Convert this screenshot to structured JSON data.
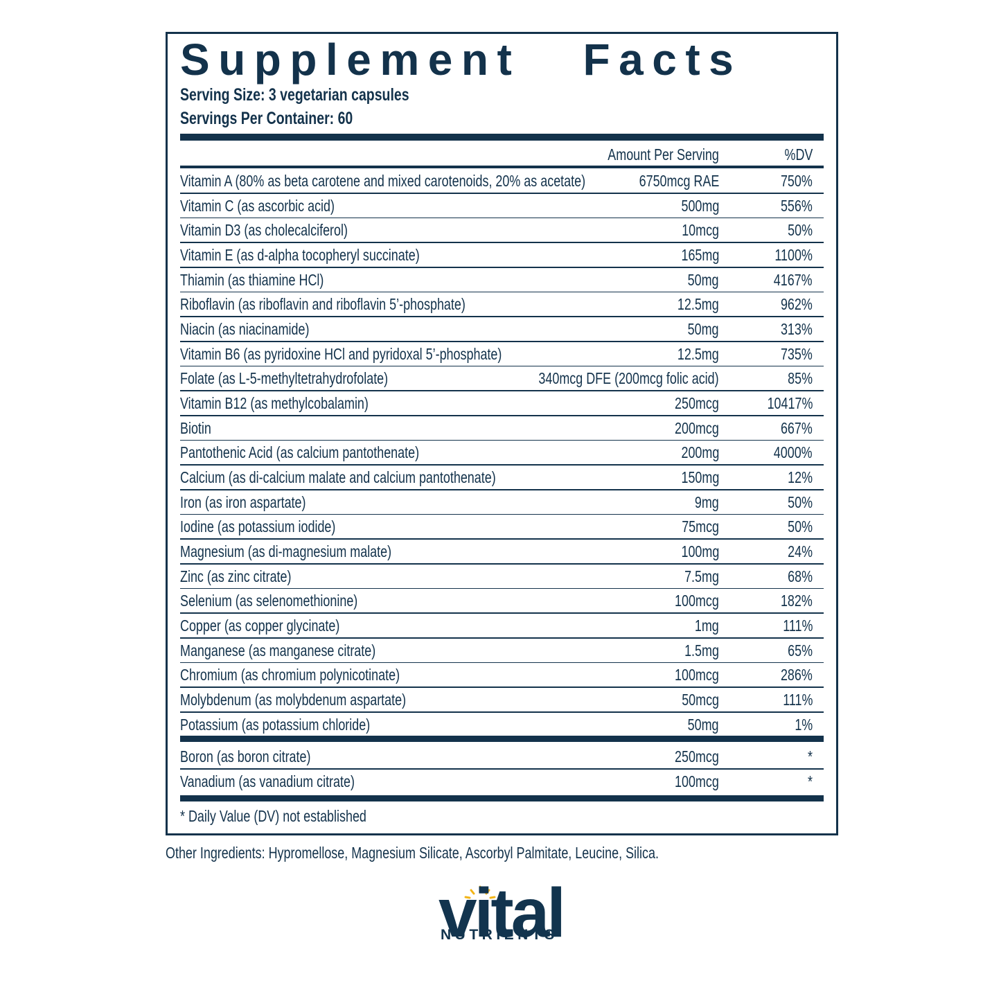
{
  "header": {
    "title": "Supplement Facts",
    "serving_size": "Serving Size: 3 vegetarian capsules",
    "servings_per_container": "Servings Per Container: 60"
  },
  "table": {
    "columns": [
      "Amount Per Serving",
      "%DV"
    ],
    "rows": [
      [
        "Vitamin A (80% as beta carotene and mixed carotenoids, 20% as acetate)",
        "6750mcg RAE",
        "750%"
      ],
      [
        "Vitamin C (as ascorbic acid)",
        "500mg",
        "556%"
      ],
      [
        "Vitamin D3 (as cholecalciferol)",
        "10mcg",
        "50%"
      ],
      [
        "Vitamin E (as d-alpha tocopheryl succinate)",
        "165mg",
        "1100%"
      ],
      [
        "Thiamin (as thiamine HCl)",
        "50mg",
        "4167%"
      ],
      [
        "Riboflavin (as riboflavin and riboflavin 5’-phosphate)",
        "12.5mg",
        "962%"
      ],
      [
        "Niacin (as niacinamide)",
        "50mg",
        "313%"
      ],
      [
        "Vitamin B6 (as pyridoxine HCl and pyridoxal 5’-phosphate)",
        "12.5mg",
        "735%"
      ],
      [
        "Folate (as L-5-methyltetrahydrofolate)",
        "340mcg DFE (200mcg folic acid)",
        "85%"
      ],
      [
        "Vitamin B12 (as methylcobalamin)",
        "250mcg",
        "10417%"
      ],
      [
        "Biotin",
        "200mcg",
        "667%"
      ],
      [
        "Pantothenic Acid (as calcium pantothenate)",
        "200mg",
        "4000%"
      ],
      [
        "Calcium (as di-calcium malate and calcium pantothenate)",
        "150mg",
        "12%"
      ],
      [
        "Iron (as iron aspartate)",
        "9mg",
        "50%"
      ],
      [
        "Iodine (as potassium iodide)",
        "75mcg",
        "50%"
      ],
      [
        "Magnesium (as di-magnesium malate)",
        "100mg",
        "24%"
      ],
      [
        "Zinc (as zinc citrate)",
        "7.5mg",
        "68%"
      ],
      [
        "Selenium (as selenomethionine)",
        "100mcg",
        "182%"
      ],
      [
        "Copper (as copper glycinate)",
        "1mg",
        "111%"
      ],
      [
        "Manganese (as manganese citrate)",
        "1.5mg",
        "65%"
      ],
      [
        "Chromium (as chromium polynicotinate)",
        "100mcg",
        "286%"
      ],
      [
        "Molybdenum (as molybdenum aspartate)",
        "50mcg",
        "111%"
      ],
      [
        "Potassium (as potassium chloride)",
        "50mg",
        "1%"
      ]
    ],
    "extra_rows": [
      [
        "Boron (as boron citrate)",
        "250mcg",
        "*"
      ],
      [
        "Vanadium (as vanadium citrate)",
        "100mcg",
        "*"
      ]
    ]
  },
  "footnote": "* Daily Value (DV) not established",
  "other_ingredients": "Other Ingredients: Hypromellose, Magnesium Silicate, Ascorbyl Palmitate, Leucine, Silica.",
  "logo": {
    "name": "vital",
    "tagline": "NUTRIENTS"
  }
}
